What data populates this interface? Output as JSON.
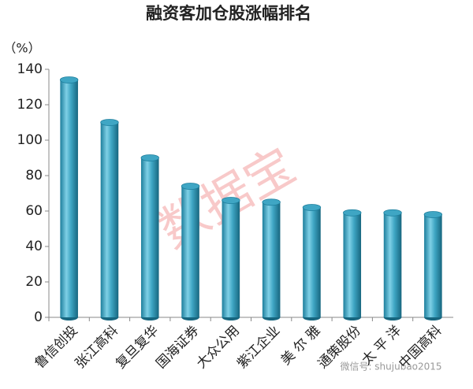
{
  "chart_data": {
    "type": "bar",
    "title": "融资客加仓股涨幅排名",
    "y_label": "（%）",
    "categories": [
      "鲁信创投",
      "张江高科",
      "复旦复华",
      "国海证券",
      "大众公用",
      "紫江企业",
      "美 尔 雅",
      "通策股份",
      "太 平 洋",
      "中国高科"
    ],
    "values": [
      134,
      110,
      90,
      74,
      66,
      65,
      62,
      59,
      59,
      58
    ],
    "color": "#3fa6c4",
    "ylim": [
      0,
      140
    ],
    "yticks": [
      0,
      20,
      40,
      60,
      80,
      100,
      120,
      140
    ],
    "grid": false,
    "watermark": "数据宝",
    "wechat_watermark": "微信号: shujubao2015"
  }
}
